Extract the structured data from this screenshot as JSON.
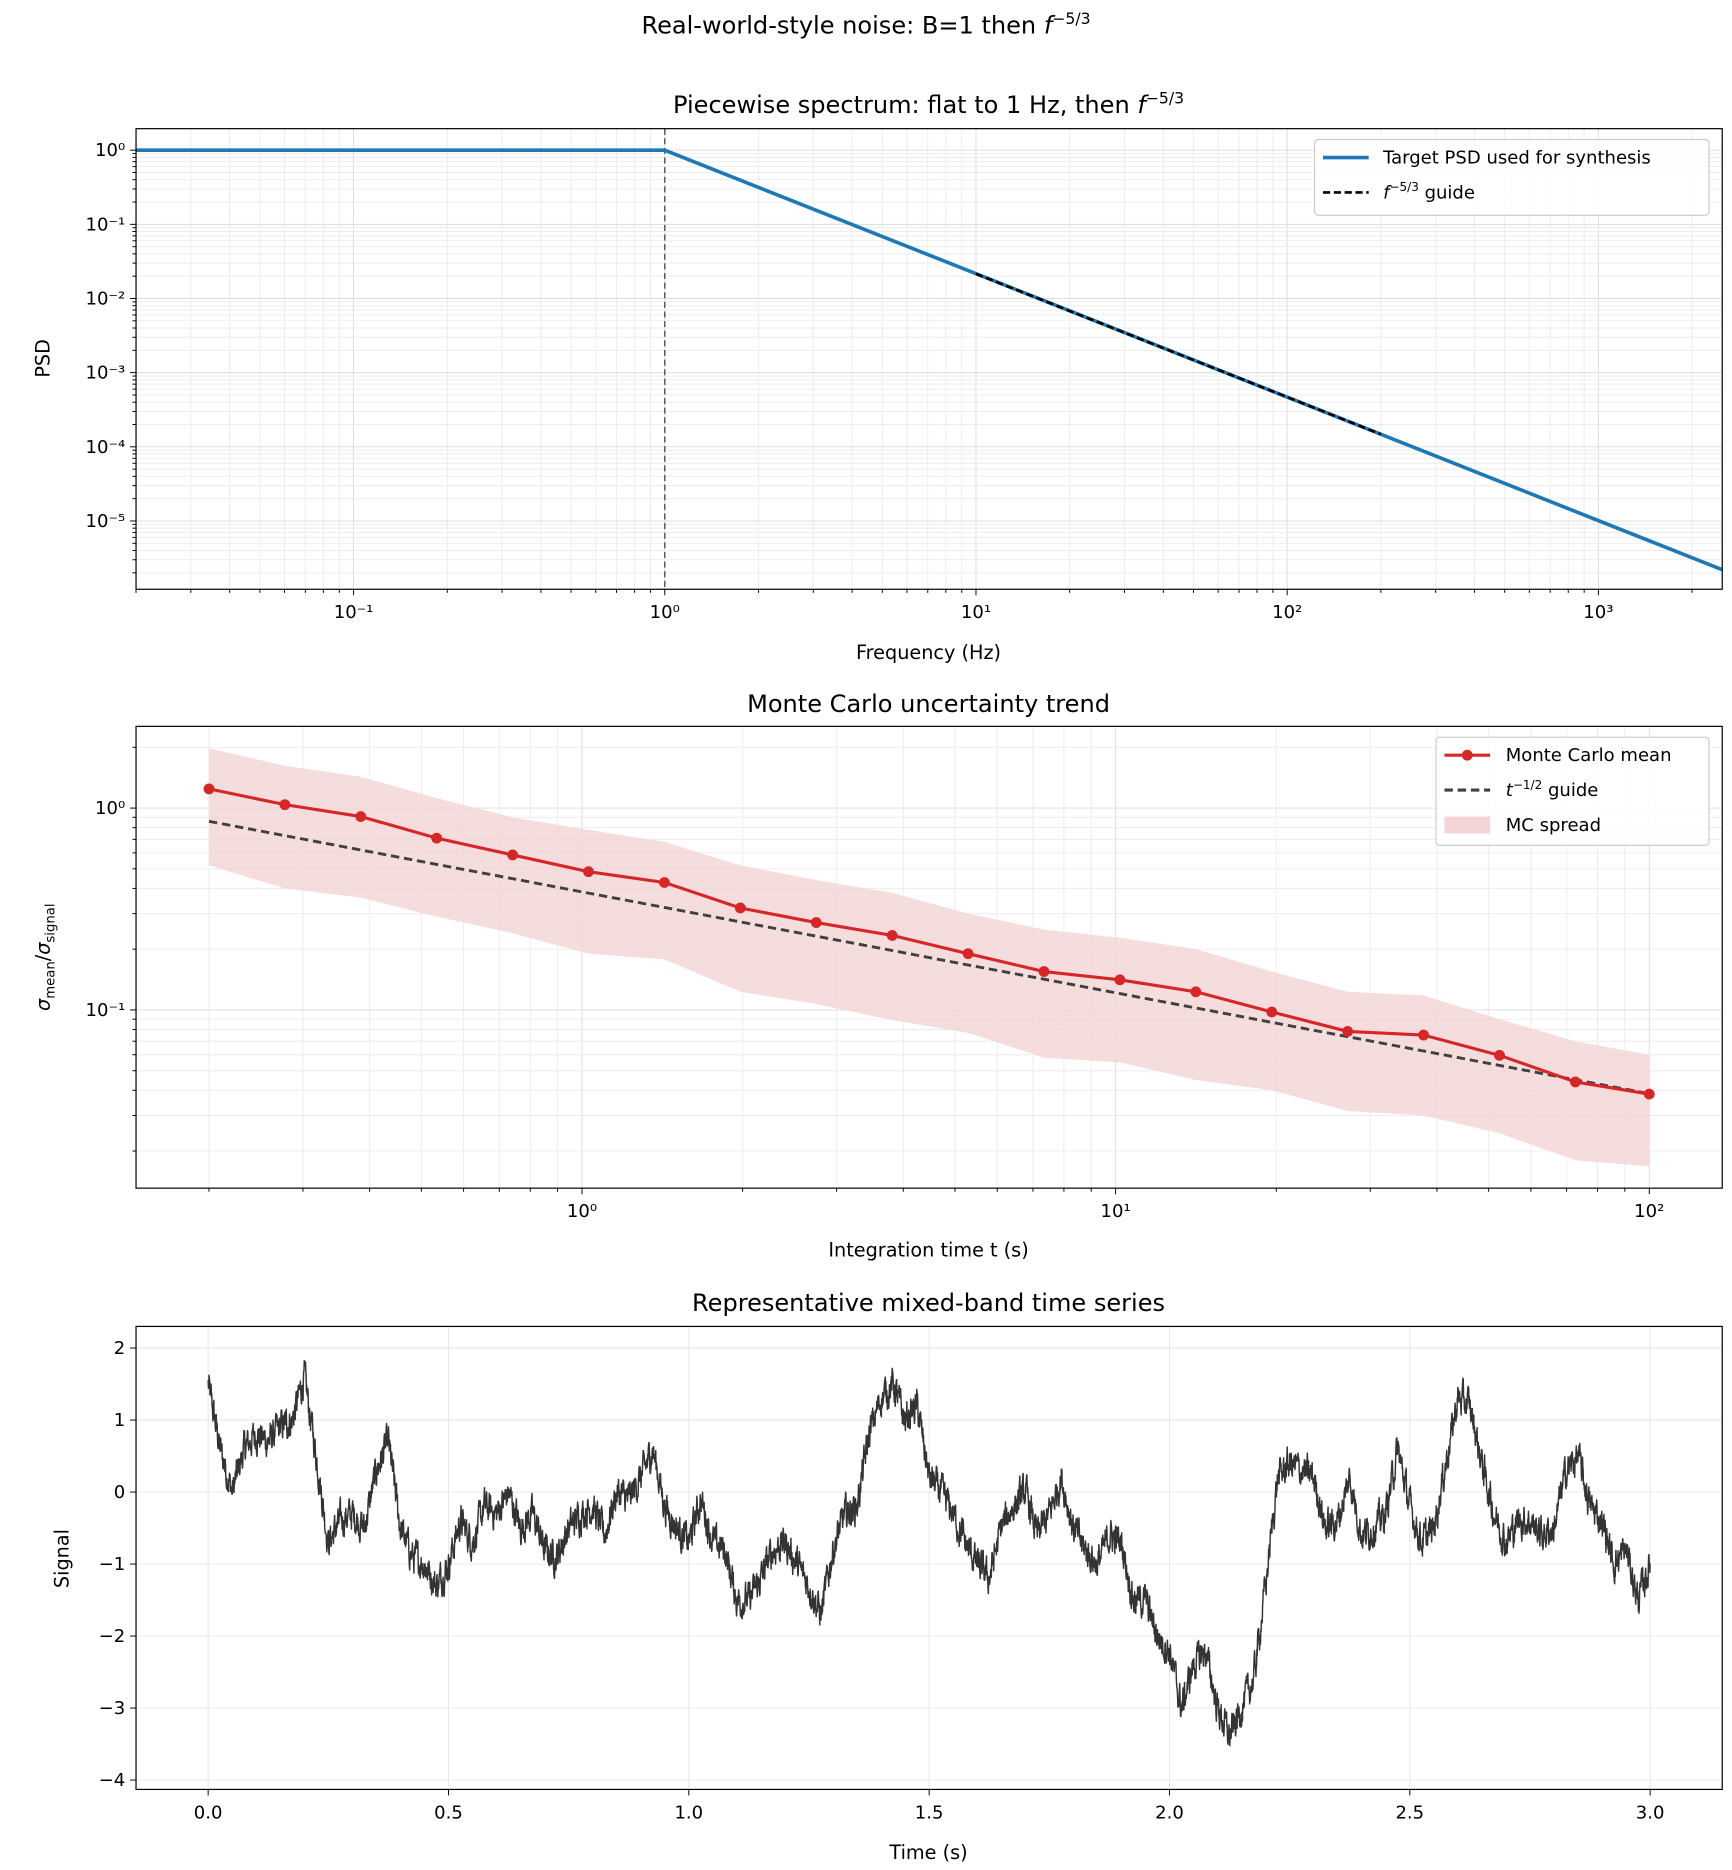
{
  "suptitle": {
    "text": "Real-world-style noise: B=1 then ",
    "math": "f",
    "exp": "−5/3"
  },
  "chart_data": [
    {
      "type": "line",
      "title": {
        "text": "Piecewise spectrum: flat to 1 Hz, then ",
        "math": "f",
        "exp": "−5/3"
      },
      "xlabel": "Frequency (Hz)",
      "ylabel": "PSD",
      "xscale": "log",
      "yscale": "log",
      "xlim": [
        0.02,
        2500
      ],
      "ylim": [
        1.2e-06,
        1.95
      ],
      "grid": "major+minor",
      "legend_position": "top-right",
      "xticks": [
        {
          "v": 0.1,
          "label": "10⁻¹"
        },
        {
          "v": 1,
          "label": "10⁰"
        },
        {
          "v": 10,
          "label": "10¹"
        },
        {
          "v": 100,
          "label": "10²"
        },
        {
          "v": 1000,
          "label": "10³"
        }
      ],
      "yticks": [
        {
          "v": 1,
          "label": "10⁰"
        },
        {
          "v": 0.1,
          "label": "10⁻¹"
        },
        {
          "v": 0.01,
          "label": "10⁻²"
        },
        {
          "v": 0.001,
          "label": "10⁻³"
        },
        {
          "v": 0.0001,
          "label": "10⁻⁴"
        },
        {
          "v": 1e-05,
          "label": "10⁻⁵"
        }
      ],
      "series": [
        {
          "name": "Target PSD used for synthesis",
          "color": "#1f77b4",
          "style": "solid",
          "x": [
            0.02,
            1,
            2500
          ],
          "y": [
            1,
            1,
            2.2e-06
          ]
        },
        {
          "name_math": "f",
          "name_exp": "−5/3",
          "name_text": " guide",
          "color": "#000000",
          "style": "dashed",
          "x": [
            10,
            200
          ],
          "y": [
            0.0215,
            0.000148
          ]
        }
      ],
      "vline": {
        "x": 1,
        "color": "#555555",
        "style": "dashed"
      }
    },
    {
      "type": "line",
      "title": "Monte Carlo uncertainty trend",
      "xlabel": "Integration time t (s)",
      "ylabel": {
        "sym": "σ",
        "sub1": "mean",
        "sep": "/",
        "sub2": "signal"
      },
      "xscale": "log",
      "yscale": "log",
      "xlim": [
        0.146,
        137
      ],
      "ylim": [
        0.0131,
        2.54
      ],
      "grid": "major+minor",
      "legend_position": "top-right",
      "xticks": [
        {
          "v": 1,
          "label": "10⁰"
        },
        {
          "v": 10,
          "label": "10¹"
        },
        {
          "v": 100,
          "label": "10²"
        }
      ],
      "yticks": [
        {
          "v": 1,
          "label": "10⁰"
        },
        {
          "v": 0.1,
          "label": "10⁻¹"
        }
      ],
      "x": [
        0.2,
        0.2775,
        0.385,
        0.5342,
        0.7413,
        1.0286,
        1.4272,
        1.9805,
        2.748,
        3.8131,
        5.291,
        7.3416,
        10.187,
        14.135,
        19.614,
        27.216,
        37.765,
        52.402,
        72.71,
        100
      ],
      "series": [
        {
          "name": "Monte Carlo mean",
          "color": "#d62728",
          "marker": "circle",
          "y": [
            1.245,
            1.04,
            0.908,
            0.71,
            0.586,
            0.484,
            0.428,
            0.32,
            0.271,
            0.234,
            0.19,
            0.155,
            0.141,
            0.123,
            0.0977,
            0.0783,
            0.0751,
            0.0596,
            0.044,
            0.0383
          ]
        },
        {
          "name_math": "t",
          "name_exp": "−1/2",
          "name_text": " guide",
          "color": "#404040",
          "style": "dashed",
          "y": [
            0.86,
            0.73,
            0.62,
            0.526,
            0.447,
            0.379,
            0.322,
            0.273,
            0.232,
            0.197,
            0.167,
            0.142,
            0.1205,
            0.1023,
            0.0868,
            0.0737,
            0.0626,
            0.0531,
            0.0451,
            0.0385
          ]
        },
        {
          "name": "MC spread",
          "color": "#f4d4d5",
          "type": "band",
          "upper": [
            1.98,
            1.62,
            1.43,
            1.12,
            0.9,
            0.78,
            0.68,
            0.52,
            0.44,
            0.38,
            0.3,
            0.25,
            0.228,
            0.2,
            0.155,
            0.123,
            0.118,
            0.09,
            0.07,
            0.06
          ],
          "lower": [
            0.52,
            0.4,
            0.36,
            0.29,
            0.24,
            0.19,
            0.178,
            0.123,
            0.107,
            0.089,
            0.077,
            0.058,
            0.055,
            0.045,
            0.04,
            0.0316,
            0.03,
            0.0245,
            0.018,
            0.0168
          ]
        }
      ]
    },
    {
      "type": "line",
      "title": "Representative mixed-band time series",
      "xlabel": "Time (s)",
      "ylabel": "Signal",
      "xlim": [
        -0.15,
        3.15
      ],
      "ylim": [
        -4.13,
        2.3
      ],
      "grid": "major",
      "xticks": [
        {
          "v": 0,
          "label": "0.0"
        },
        {
          "v": 0.5,
          "label": "0.5"
        },
        {
          "v": 1,
          "label": "1.0"
        },
        {
          "v": 1.5,
          "label": "1.5"
        },
        {
          "v": 2,
          "label": "2.0"
        },
        {
          "v": 2.5,
          "label": "2.5"
        },
        {
          "v": 3,
          "label": "3.0"
        }
      ],
      "yticks": [
        {
          "v": 2,
          "label": "2"
        },
        {
          "v": 1,
          "label": "1"
        },
        {
          "v": 0,
          "label": "0"
        },
        {
          "v": -1,
          "label": "−1"
        },
        {
          "v": -2,
          "label": "−2"
        },
        {
          "v": -3,
          "label": "−3"
        },
        {
          "v": -4,
          "label": "−4"
        }
      ],
      "series": [
        {
          "color": "#333333",
          "x_start": 0,
          "x_step": 0.025,
          "y": [
            1.5,
            0.6,
            0.0,
            0.6,
            0.8,
            0.7,
            0.9,
            1.0,
            1.6,
            0.5,
            -0.7,
            -0.4,
            -0.3,
            -0.5,
            0.3,
            0.7,
            -0.5,
            -0.9,
            -1.0,
            -1.3,
            -1.0,
            -0.4,
            -0.7,
            -0.2,
            -0.3,
            0.0,
            -0.5,
            -0.3,
            -0.8,
            -0.9,
            -0.5,
            -0.3,
            -0.2,
            -0.6,
            0.0,
            -0.1,
            0.2,
            0.6,
            -0.2,
            -0.5,
            -0.7,
            -0.1,
            -0.7,
            -0.8,
            -1.5,
            -1.5,
            -1.2,
            -0.8,
            -0.7,
            -1.0,
            -1.3,
            -1.7,
            -0.8,
            -0.3,
            -0.2,
            0.8,
            1.3,
            1.5,
            1.0,
            1.2,
            0.2,
            0.0,
            -0.3,
            -0.7,
            -1.0,
            -1.2,
            -0.5,
            -0.2,
            0.0,
            -0.6,
            -0.3,
            0.2,
            -0.5,
            -0.8,
            -1.0,
            -0.6,
            -0.7,
            -1.5,
            -1.5,
            -2.0,
            -2.2,
            -3.0,
            -2.4,
            -2.2,
            -3.0,
            -3.4,
            -3.0,
            -2.6,
            -1.3,
            0.2,
            0.4,
            0.3,
            0.2,
            -0.5,
            -0.4,
            0.2,
            -0.6,
            -0.5,
            -0.3,
            0.6,
            -0.2,
            -0.7,
            -0.5,
            0.4,
            1.3,
            1.2,
            0.4,
            -0.3,
            -0.7,
            -0.4,
            -0.4,
            -0.6,
            -0.5,
            0.3,
            0.5,
            -0.2,
            -0.4,
            -1.0,
            -0.8,
            -1.5,
            -1.0
          ]
        }
      ]
    }
  ]
}
